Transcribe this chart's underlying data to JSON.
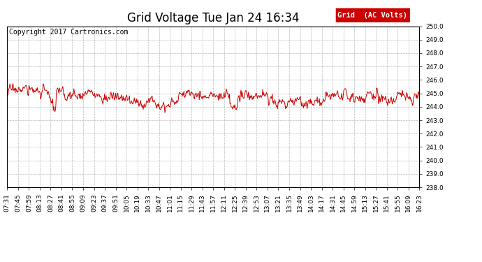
{
  "title": "Grid Voltage Tue Jan 24 16:34",
  "copyright": "Copyright 2017 Cartronics.com",
  "legend_label": "Grid  (AC Volts)",
  "legend_bg": "#cc0000",
  "legend_fg": "#ffffff",
  "line_color": "#cc0000",
  "background_color": "#ffffff",
  "grid_color": "#aaaaaa",
  "ylim": [
    238.0,
    250.0
  ],
  "yticks": [
    238.0,
    239.0,
    240.0,
    241.0,
    242.0,
    243.0,
    244.0,
    245.0,
    246.0,
    247.0,
    248.0,
    249.0,
    250.0
  ],
  "xtick_labels": [
    "07:31",
    "07:45",
    "07:59",
    "08:13",
    "08:27",
    "08:41",
    "08:55",
    "09:09",
    "09:23",
    "09:37",
    "09:51",
    "10:05",
    "10:19",
    "10:33",
    "10:47",
    "11:01",
    "11:15",
    "11:29",
    "11:43",
    "11:57",
    "12:11",
    "12:25",
    "12:39",
    "12:53",
    "13:07",
    "13:21",
    "13:35",
    "13:49",
    "14:03",
    "14:17",
    "14:31",
    "14:45",
    "14:59",
    "15:13",
    "15:27",
    "15:41",
    "15:55",
    "16:09",
    "16:23"
  ],
  "title_fontsize": 12,
  "tick_fontsize": 6.5,
  "copyright_fontsize": 7,
  "legend_fontsize": 7.5,
  "seed": 17,
  "n_points": 780,
  "base_voltage": 244.7,
  "noise_scale": 0.45
}
